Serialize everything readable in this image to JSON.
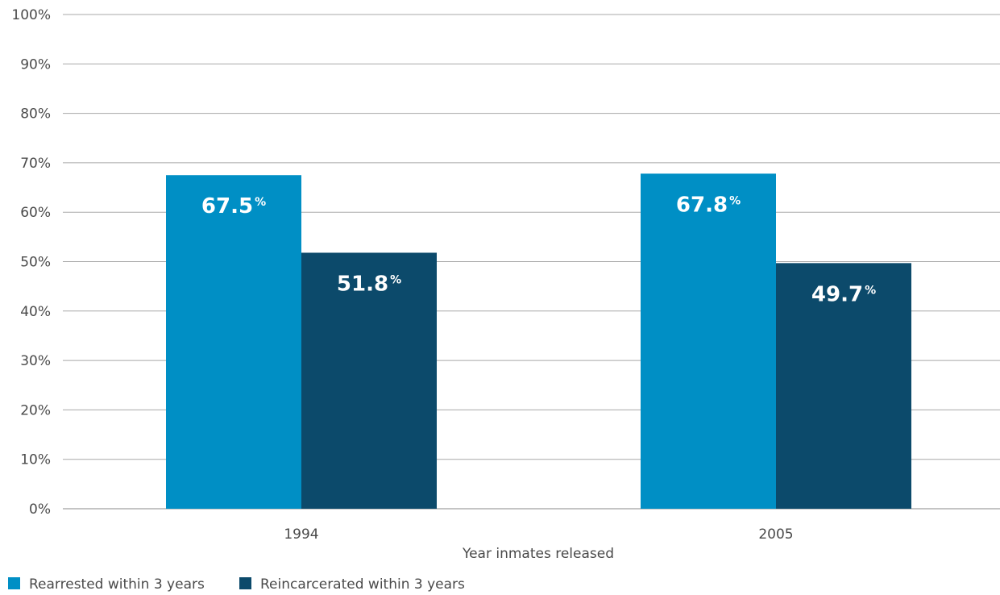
{
  "chart_data": {
    "type": "bar",
    "categories": [
      "1994",
      "2005"
    ],
    "series": [
      {
        "name": "Rearrested within 3 years",
        "values": [
          67.5,
          67.8
        ],
        "color": "#008fc5"
      },
      {
        "name": "Reincarcerated within 3 years",
        "values": [
          51.8,
          49.7
        ],
        "color": "#0c4a6b"
      }
    ],
    "data_labels": [
      [
        "67.5",
        "67.8"
      ],
      [
        "51.8",
        "49.7"
      ]
    ],
    "data_label_suffix": "%",
    "xlabel": "Year inmates released",
    "ylabel": "",
    "ylim": [
      0,
      100
    ],
    "yticks": [
      "0%",
      "10%",
      "20%",
      "30%",
      "40%",
      "50%",
      "60%",
      "70%",
      "80%",
      "90%",
      "100%"
    ],
    "grid": true,
    "legend_position": "bottom-left"
  }
}
